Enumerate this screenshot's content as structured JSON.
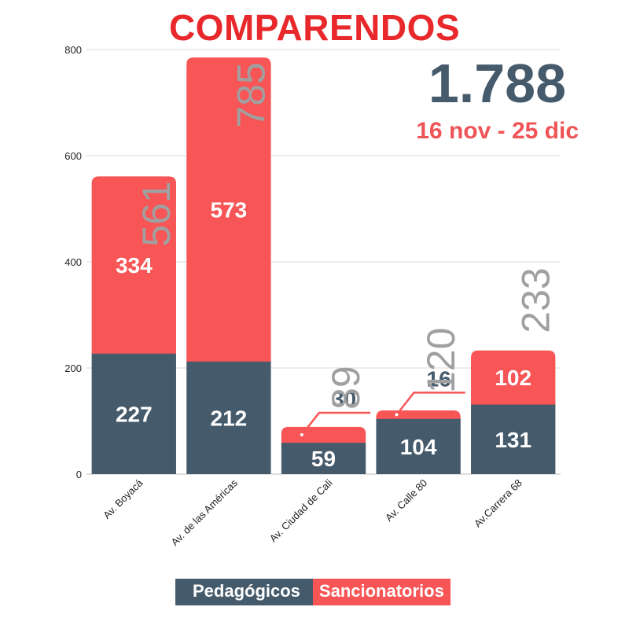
{
  "title": "COMPARENDOS",
  "total": "1.788",
  "period": "16 nov - 25 dic",
  "legend": {
    "pedagogicos": "Pedagógicos",
    "sancionatorios": "Sancionatorios"
  },
  "colors": {
    "pedagogicos": "#455a6b",
    "sancionatorios": "#f75556",
    "title": "#e8282b",
    "total_label": "#a0a0a0",
    "grid": "#d9d9d9"
  },
  "chart_data": {
    "type": "bar",
    "stacked": true,
    "categories": [
      "Av. Boyacá",
      "Av. de las Américas",
      "Av. Ciudad de Cali",
      "Av. Calle 80",
      "Av.Carrera 68"
    ],
    "series": [
      {
        "name": "Pedagógicos",
        "values": [
          227,
          212,
          59,
          104,
          131
        ]
      },
      {
        "name": "Sancionatorios",
        "values": [
          334,
          573,
          30,
          16,
          102
        ]
      }
    ],
    "totals": [
      561,
      785,
      89,
      120,
      233
    ],
    "y_ticks": [
      "0",
      "200",
      "400",
      "600",
      "800"
    ],
    "ylim": [
      0,
      800
    ],
    "grid": true,
    "legend_position": "bottom"
  }
}
